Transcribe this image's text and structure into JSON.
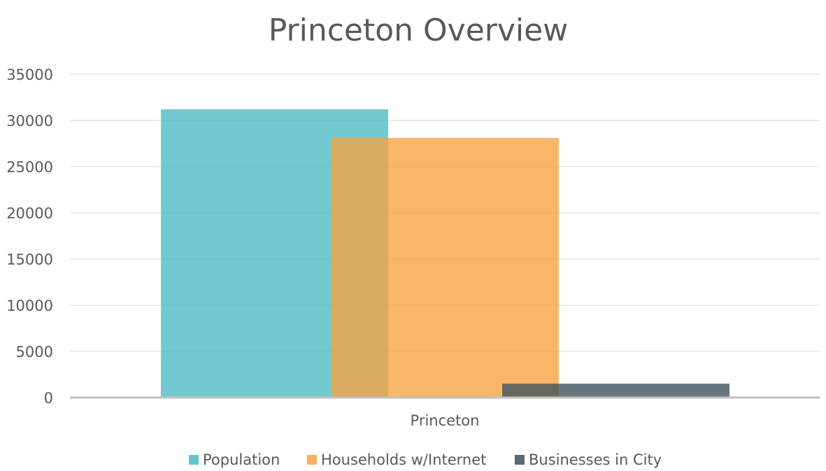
{
  "chart_data": {
    "type": "bar",
    "title": "Princeton Overview",
    "categories": [
      "Princeton"
    ],
    "series": [
      {
        "name": "Population",
        "values": [
          31200
        ],
        "color": "#4bb8c1"
      },
      {
        "name": "Households w/Internet",
        "values": [
          28100
        ],
        "color": "#f7a23e"
      },
      {
        "name": "Businesses in City",
        "values": [
          1500
        ],
        "color": "#3e4f5c"
      }
    ],
    "ylim": [
      0,
      35000
    ],
    "yticks": [
      0,
      5000,
      10000,
      15000,
      20000,
      25000,
      30000,
      35000
    ],
    "grid": true,
    "legend": "bottom",
    "bar_overlap": true
  }
}
